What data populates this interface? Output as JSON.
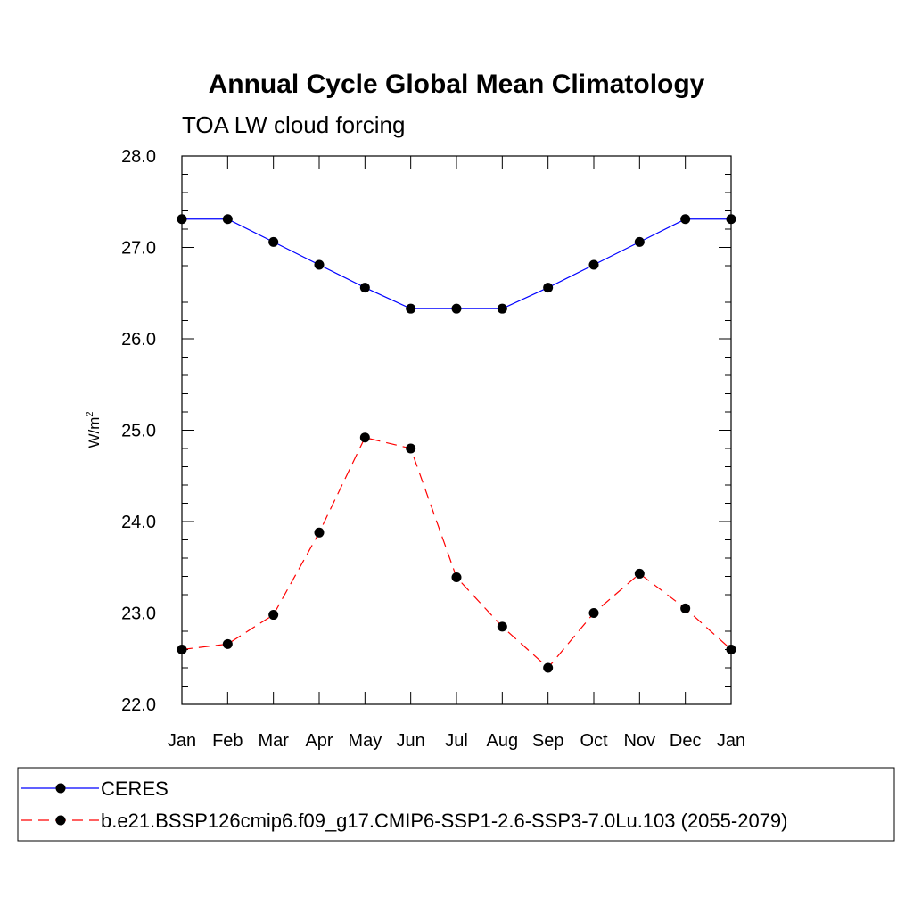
{
  "chart_data": {
    "type": "line",
    "title": "Annual Cycle Global Mean Climatology",
    "subtitle": "TOA LW cloud forcing",
    "ylabel_base": "W/m",
    "ylabel_sup": "2",
    "categories": [
      "Jan",
      "Feb",
      "Mar",
      "Apr",
      "May",
      "Jun",
      "Jul",
      "Aug",
      "Sep",
      "Oct",
      "Nov",
      "Dec",
      "Jan"
    ],
    "ylim": [
      22.0,
      28.0
    ],
    "yticks": [
      "22.0",
      "23.0",
      "24.0",
      "25.0",
      "26.0",
      "27.0",
      "28.0"
    ],
    "grid": false,
    "legend_position": "bottom",
    "series": [
      {
        "name": "CERES",
        "color": "#0000ff",
        "line_style": "solid",
        "marker": "filled-circle",
        "values": [
          27.31,
          27.31,
          27.06,
          26.81,
          26.56,
          26.33,
          26.33,
          26.33,
          26.56,
          26.81,
          27.06,
          27.31,
          27.31
        ]
      },
      {
        "name": "b.e21.BSSP126cmip6.f09_g17.CMIP6-SSP1-2.6-SSP3-7.0Lu.103 (2055-2079)",
        "color": "#ff0000",
        "line_style": "dashed",
        "marker": "filled-circle",
        "values": [
          22.6,
          22.66,
          22.98,
          23.88,
          24.92,
          24.8,
          23.39,
          22.85,
          22.4,
          23.0,
          23.43,
          23.05,
          22.6
        ]
      }
    ]
  }
}
